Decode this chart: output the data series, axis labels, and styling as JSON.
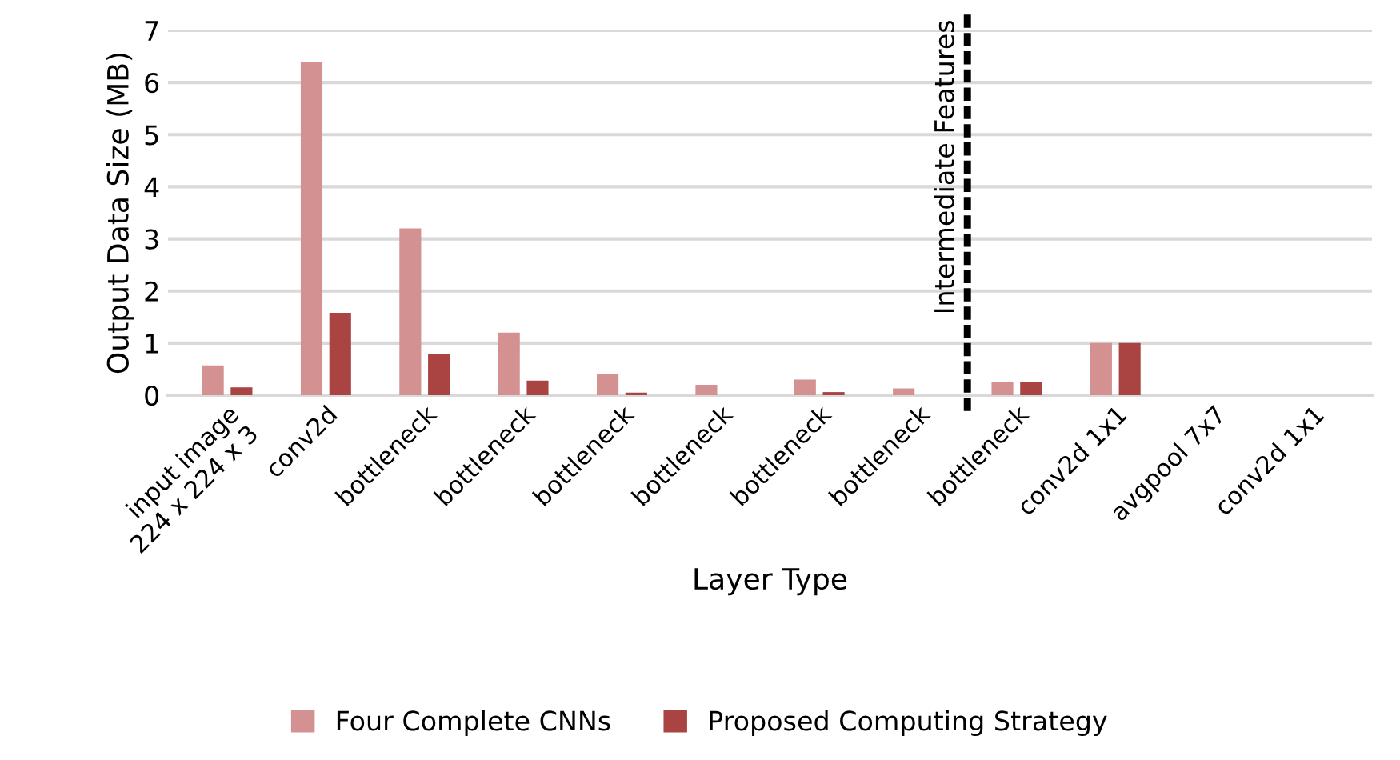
{
  "chart_data": {
    "type": "bar",
    "xlabel": "Layer Type",
    "ylabel": "Output Data Size (MB)",
    "categories": [
      "input image\n224 x 224 x 3",
      "conv2d",
      "bottleneck",
      "bottleneck",
      "bottleneck",
      "bottleneck",
      "bottleneck",
      "bottleneck",
      "bottleneck",
      "conv2d 1x1",
      "avgpool 7x7",
      "conv2d 1x1"
    ],
    "series": [
      {
        "name": "Four Complete CNNs",
        "color": "#d39191",
        "values": [
          0.57,
          6.4,
          3.2,
          1.2,
          0.4,
          0.2,
          0.3,
          0.13,
          0.25,
          1.0,
          0,
          0
        ]
      },
      {
        "name": "Proposed Computing Strategy",
        "color": "#a94442",
        "values": [
          0.15,
          1.58,
          0.8,
          0.28,
          0.05,
          0,
          0.06,
          0,
          0.25,
          1.0,
          0,
          0
        ]
      }
    ],
    "ylim": [
      0,
      7
    ],
    "yticks": [
      0,
      1,
      2,
      3,
      4,
      5,
      6,
      7
    ],
    "annotations": [
      "Intermediate Features"
    ],
    "grid": "y",
    "legend": "bottom"
  }
}
